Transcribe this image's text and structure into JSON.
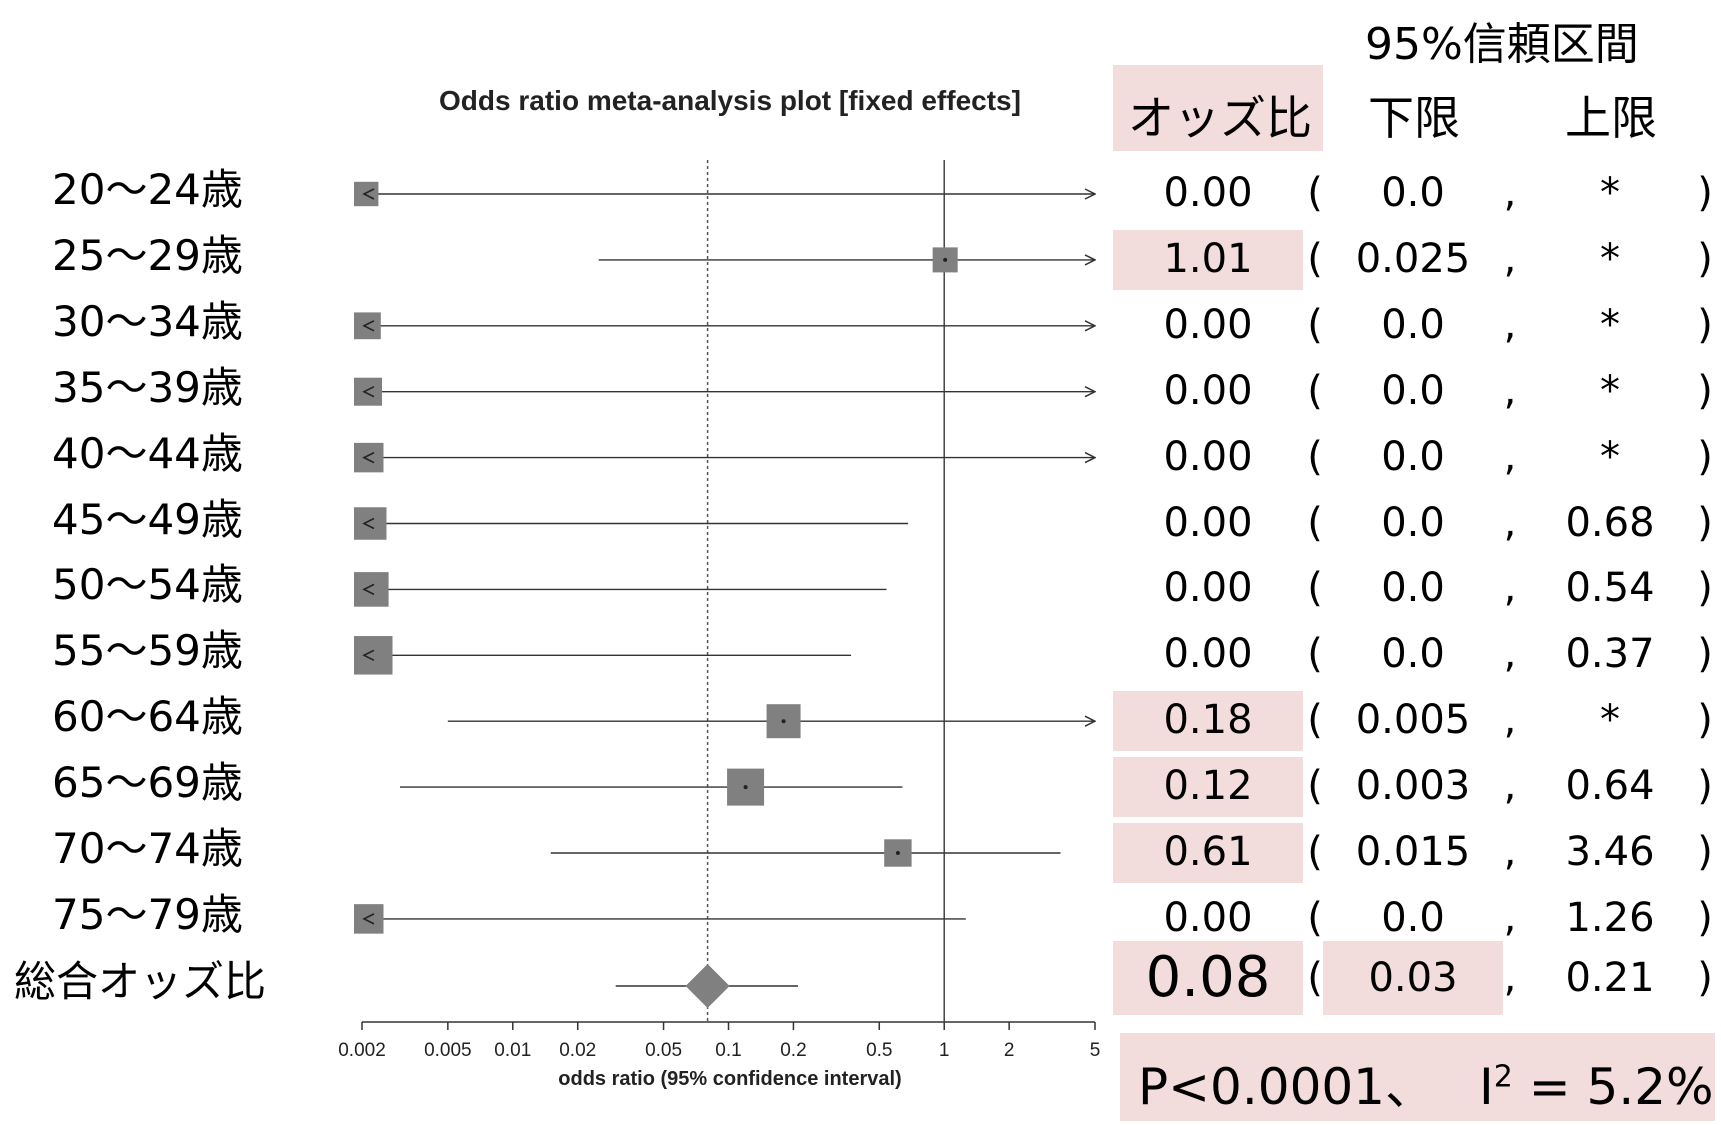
{
  "chart_data": {
    "type": "forest",
    "title": "Odds ratio meta-analysis plot [fixed effects]",
    "xlabel": "odds ratio (95% confidence interval)",
    "x_scale": "log",
    "xlim": [
      0.002,
      5
    ],
    "x_ticks": [
      0.002,
      0.005,
      0.01,
      0.02,
      0.05,
      0.1,
      0.2,
      0.5,
      1,
      2,
      5
    ],
    "x_tick_labels": [
      "0.002",
      "0.005",
      "0.01",
      "0.02",
      "0.05",
      "0.1",
      "0.2",
      "0.5",
      "1",
      "2",
      "5"
    ],
    "reference_line": 1,
    "pooled_line": 0.08,
    "rows": [
      {
        "label": "20〜24歳",
        "or": 0.002,
        "lo": 0.002,
        "hi": 5,
        "weight": 0.28,
        "left_arrow": true,
        "right_arrow": true
      },
      {
        "label": "25〜29歳",
        "or": 1.01,
        "lo": 0.025,
        "hi": 5,
        "weight": 0.3,
        "left_arrow": false,
        "right_arrow": true
      },
      {
        "label": "30〜34歳",
        "or": 0.002,
        "lo": 0.002,
        "hi": 5,
        "weight": 0.36,
        "left_arrow": true,
        "right_arrow": true
      },
      {
        "label": "35〜39歳",
        "or": 0.002,
        "lo": 0.002,
        "hi": 5,
        "weight": 0.4,
        "left_arrow": true,
        "right_arrow": true
      },
      {
        "label": "40〜44歳",
        "or": 0.002,
        "lo": 0.002,
        "hi": 5,
        "weight": 0.45,
        "left_arrow": true,
        "right_arrow": true
      },
      {
        "label": "45〜49歳",
        "or": 0.002,
        "lo": 0.002,
        "hi": 0.68,
        "weight": 0.55,
        "left_arrow": true,
        "right_arrow": false
      },
      {
        "label": "50〜54歳",
        "or": 0.002,
        "lo": 0.002,
        "hi": 0.54,
        "weight": 0.62,
        "left_arrow": true,
        "right_arrow": false
      },
      {
        "label": "55〜59歳",
        "or": 0.002,
        "lo": 0.002,
        "hi": 0.37,
        "weight": 0.75,
        "left_arrow": true,
        "right_arrow": false
      },
      {
        "label": "60〜64歳",
        "or": 0.18,
        "lo": 0.005,
        "hi": 5,
        "weight": 0.6,
        "left_arrow": false,
        "right_arrow": true
      },
      {
        "label": "65〜69歳",
        "or": 0.12,
        "lo": 0.003,
        "hi": 0.64,
        "weight": 0.7,
        "left_arrow": false,
        "right_arrow": false
      },
      {
        "label": "70〜74歳",
        "or": 0.61,
        "lo": 0.015,
        "hi": 3.46,
        "weight": 0.38,
        "left_arrow": false,
        "right_arrow": false
      },
      {
        "label": "75〜79歳",
        "or": 0.002,
        "lo": 0.002,
        "hi": 1.26,
        "weight": 0.45,
        "left_arrow": true,
        "right_arrow": false
      }
    ],
    "pooled": {
      "label": "総合オッズ比",
      "or": 0.08,
      "lo": 0.03,
      "hi": 0.21,
      "whisker_lo": 0.03,
      "whisker_hi": 0.21
    }
  },
  "table": {
    "ci_header": "95%信頼区間",
    "col_or": "オッズ比",
    "col_lower": "下限",
    "col_upper": "上限",
    "open_paren": "(",
    "comma": ",",
    "close_paren": ")",
    "rows": [
      {
        "or": "0.00",
        "lo": "0.0",
        "hi": "*",
        "highlight": false
      },
      {
        "or": "1.01",
        "lo": "0.025",
        "hi": "*",
        "highlight": true
      },
      {
        "or": "0.00",
        "lo": "0.0",
        "hi": "*",
        "highlight": false
      },
      {
        "or": "0.00",
        "lo": "0.0",
        "hi": "*",
        "highlight": false
      },
      {
        "or": "0.00",
        "lo": "0.0",
        "hi": "*",
        "highlight": false
      },
      {
        "or": "0.00",
        "lo": "0.0",
        "hi": "0.68",
        "highlight": false
      },
      {
        "or": "0.00",
        "lo": "0.0",
        "hi": "0.54",
        "highlight": false
      },
      {
        "or": "0.00",
        "lo": "0.0",
        "hi": "0.37",
        "highlight": false
      },
      {
        "or": "0.18",
        "lo": "0.005",
        "hi": "*",
        "highlight": true
      },
      {
        "or": "0.12",
        "lo": "0.003",
        "hi": "0.64",
        "highlight": true
      },
      {
        "or": "0.61",
        "lo": "0.015",
        "hi": "3.46",
        "highlight": true
      },
      {
        "or": "0.00",
        "lo": "0.0",
        "hi": "1.26",
        "highlight": false
      }
    ],
    "pooled": {
      "or": "0.08",
      "lo": "0.03",
      "hi": "0.21"
    },
    "stats_p": "P<0.0001、",
    "stats_i": "I",
    "stats_i_sup": "2",
    "stats_i_val": " = 5.2%"
  },
  "colors": {
    "highlight": "#f2dcdc",
    "marker": "#808080",
    "line": "#333333"
  }
}
